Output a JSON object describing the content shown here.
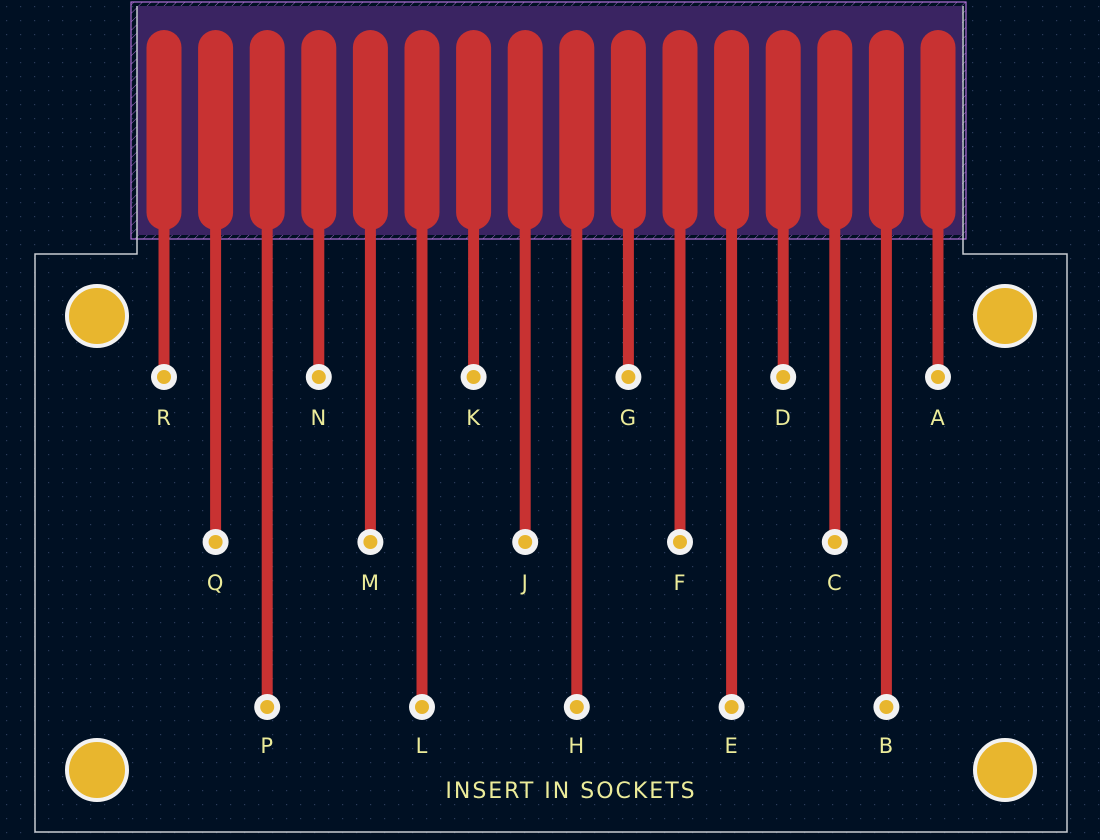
{
  "board": {
    "colors": {
      "background": "#001023",
      "grid_dot": "#2a3a5a",
      "outline": "#c8ccd2",
      "copper": "#c83232",
      "pad": "#e8b62e",
      "pad_ring": "#f2f2f2",
      "silkscreen": "#ecec9a",
      "courtyard": "#b270d8",
      "mask_fill": "#3a2462"
    },
    "silk_text": "INSERT IN SOCKETS"
  },
  "fingers": [
    {
      "label": "R",
      "row": 0
    },
    {
      "label": "Q",
      "row": 1
    },
    {
      "label": "P",
      "row": 2
    },
    {
      "label": "N",
      "row": 0
    },
    {
      "label": "M",
      "row": 1
    },
    {
      "label": "L",
      "row": 2
    },
    {
      "label": "K",
      "row": 0
    },
    {
      "label": "J",
      "row": 1
    },
    {
      "label": "H",
      "row": 2
    },
    {
      "label": "G",
      "row": 0
    },
    {
      "label": "F",
      "row": 1
    },
    {
      "label": "E",
      "row": 2
    },
    {
      "label": "D",
      "row": 0
    },
    {
      "label": "C",
      "row": 1
    },
    {
      "label": "B",
      "row": 2
    },
    {
      "label": "A",
      "row": 0
    }
  ]
}
